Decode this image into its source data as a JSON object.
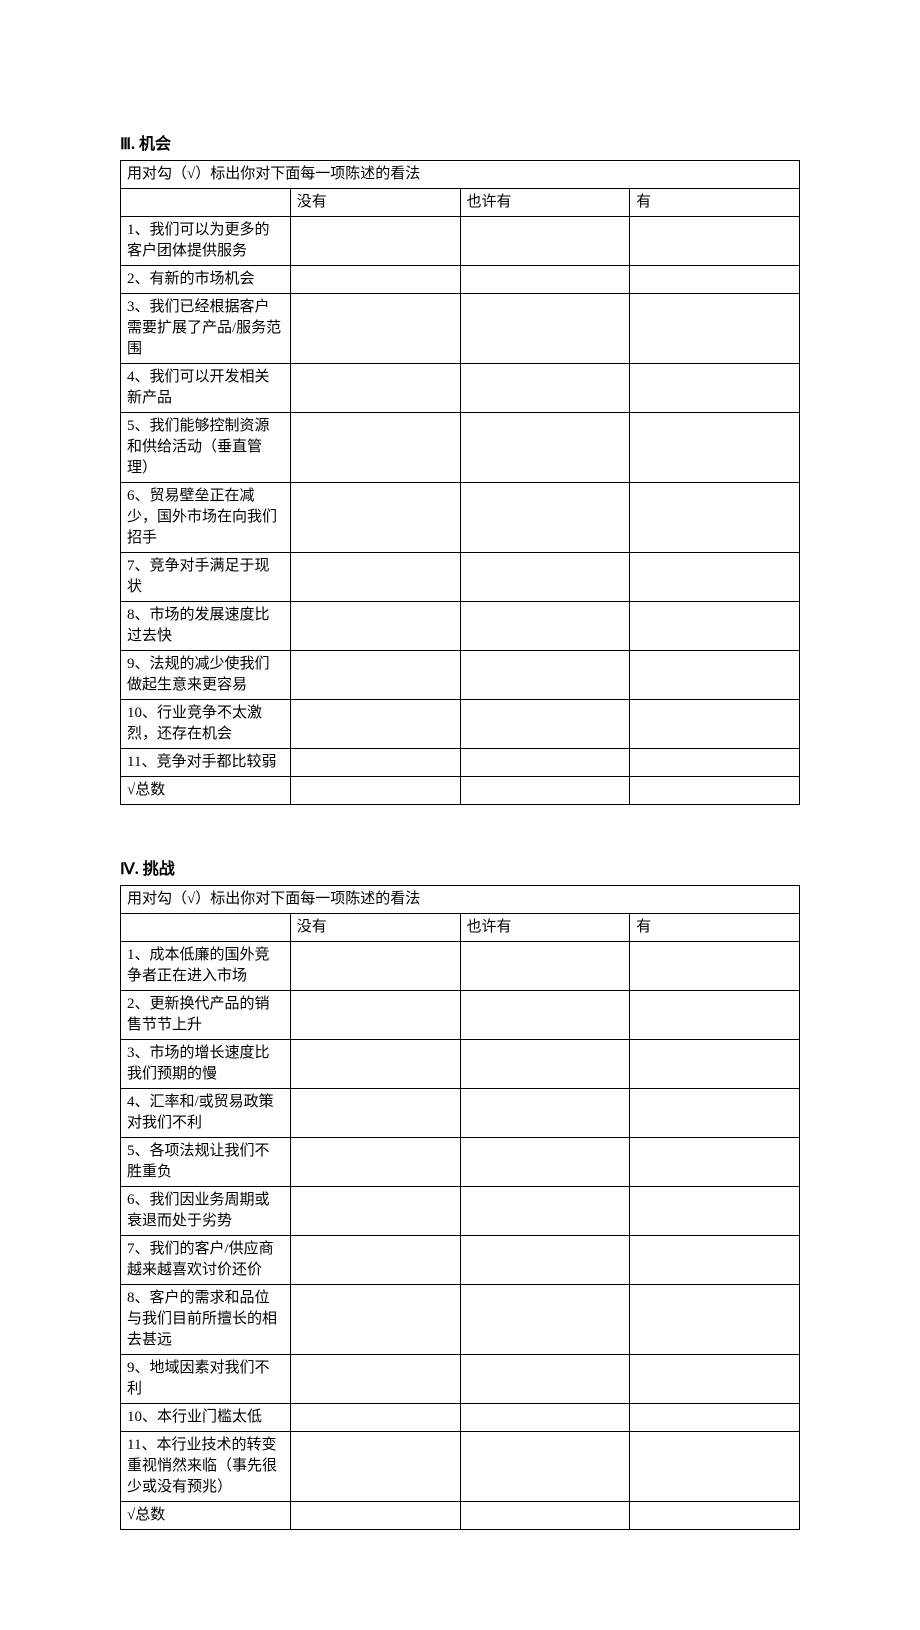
{
  "section1": {
    "title": "Ⅲ. 机会",
    "instruction": "用对勾（√）标出你对下面每一项陈述的看法",
    "headers": [
      "没有",
      "也许有",
      "有"
    ],
    "rows": [
      "1、我们可以为更多的客户团体提供服务",
      "2、有新的市场机会",
      "3、我们已经根据客户需要扩展了产品/服务范围",
      "4、我们可以开发相关新产品",
      "5、我们能够控制资源和供给活动（垂直管理）",
      "6、贸易壁垒正在减少，国外市场在向我们招手",
      "7、竞争对手满足于现状",
      "8、市场的发展速度比过去快",
      "9、法规的减少使我们做起生意来更容易",
      "10、行业竞争不太激烈，还存在机会",
      "11、竞争对手都比较弱"
    ],
    "total": "√总数"
  },
  "section2": {
    "title": "Ⅳ. 挑战",
    "instruction": "用对勾（√）标出你对下面每一项陈述的看法",
    "headers": [
      "没有",
      "也许有",
      "有"
    ],
    "rows": [
      "1、成本低廉的国外竞争者正在进入市场",
      "2、更新换代产品的销售节节上升",
      "3、市场的增长速度比我们预期的慢",
      "4、汇率和/或贸易政策对我们不利",
      "5、各项法规让我们不胜重负",
      "6、我们因业务周期或衰退而处于劣势",
      "7、我们的客户/供应商越来越喜欢讨价还价",
      "8、客户的需求和品位与我们目前所擅长的相去甚远",
      "9、地域因素对我们不利",
      "10、本行业门槛太低",
      "11、本行业技术的转变重视悄然来临（事先很少或没有预兆）"
    ],
    "total": "√总数"
  }
}
